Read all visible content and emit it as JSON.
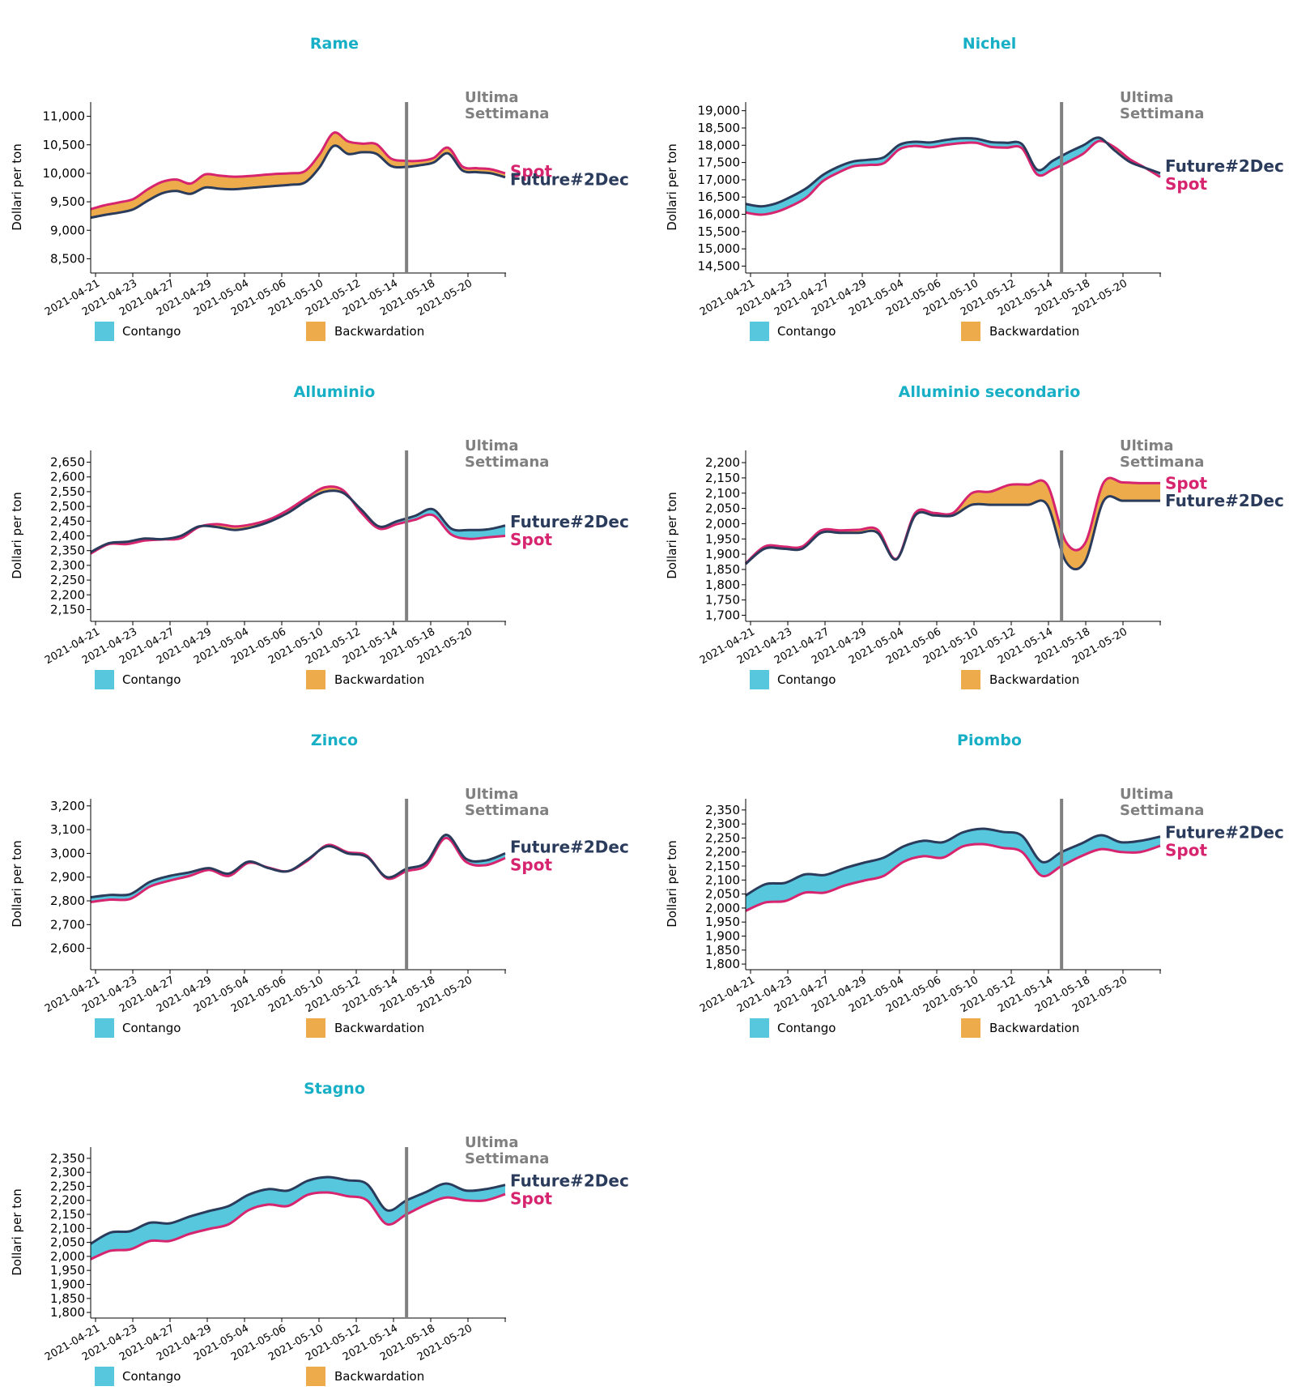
{
  "chart_data": [
    {
      "type": "area",
      "title": "Rame",
      "ylabel": "Dollari per ton",
      "ylim": [
        8250,
        11250
      ],
      "yticks": [
        8500,
        9000,
        9500,
        10000,
        10500,
        11000
      ],
      "ytick_labels": [
        "8,500",
        "9,000",
        "9,500",
        "10,000",
        "10,500",
        "11,000"
      ],
      "marker_label_1": "Ultima",
      "marker_label_2": "Settimana",
      "legend": [
        "Contango",
        "Backwardation"
      ],
      "series": [
        {
          "name": "Spot",
          "values": [
            9370,
            9440,
            9490,
            9550,
            9720,
            9850,
            9890,
            9820,
            9980,
            9960,
            9940,
            9950,
            9970,
            9990,
            10000,
            10040,
            10330,
            10710,
            10560,
            10520,
            10510,
            10260,
            10220,
            10220,
            10270,
            10450,
            10120,
            10090,
            10070,
            10000
          ]
        },
        {
          "name": "Future#2Dec",
          "values": [
            9220,
            9270,
            9310,
            9370,
            9520,
            9650,
            9690,
            9640,
            9750,
            9730,
            9720,
            9740,
            9760,
            9780,
            9800,
            9840,
            10100,
            10480,
            10340,
            10370,
            10340,
            10130,
            10110,
            10140,
            10190,
            10350,
            10050,
            10020,
            10000,
            9930
          ]
        }
      ],
      "end_label_order": [
        "Spot",
        "Future#2Dec"
      ]
    },
    {
      "type": "area",
      "title": "Nichel",
      "ylabel": "Dollari per ton",
      "ylim": [
        14300,
        19250
      ],
      "yticks": [
        14500,
        15000,
        15500,
        16000,
        16500,
        17000,
        17500,
        18000,
        18500,
        19000
      ],
      "ytick_labels": [
        "14,500",
        "15,000",
        "15,500",
        "16,000",
        "16,500",
        "17,000",
        "17,500",
        "18,000",
        "18,500",
        "19,000"
      ],
      "marker_label_1": "Ultima",
      "marker_label_2": "Settimana",
      "legend": [
        "Contango",
        "Backwardation"
      ],
      "series": [
        {
          "name": "Spot",
          "values": [
            16050,
            15990,
            16070,
            16250,
            16500,
            16950,
            17200,
            17390,
            17430,
            17480,
            17880,
            17980,
            17940,
            18010,
            18060,
            18070,
            17950,
            17930,
            17910,
            17150,
            17300,
            17520,
            17760,
            18120,
            17950,
            17600,
            17350,
            17080
          ]
        },
        {
          "name": "Future#2Dec",
          "values": [
            16300,
            16230,
            16320,
            16520,
            16770,
            17130,
            17370,
            17530,
            17580,
            17650,
            18010,
            18100,
            18080,
            18150,
            18200,
            18190,
            18090,
            18070,
            18030,
            17290,
            17550,
            17790,
            18000,
            18220,
            17860,
            17520,
            17350,
            17190
          ]
        }
      ],
      "end_label_order": [
        "Future#2Dec",
        "Spot"
      ]
    },
    {
      "type": "area",
      "title": "Alluminio",
      "ylabel": "Dollari per ton",
      "ylim": [
        2110,
        2690
      ],
      "yticks": [
        2150,
        2200,
        2250,
        2300,
        2350,
        2400,
        2450,
        2500,
        2550,
        2600,
        2650
      ],
      "ytick_labels": [
        "2,150",
        "2,200",
        "2,250",
        "2,300",
        "2,350",
        "2,400",
        "2,450",
        "2,500",
        "2,550",
        "2,600",
        "2,650"
      ],
      "marker_label_1": "Ultima",
      "marker_label_2": "Settimana",
      "legend": [
        "Contango",
        "Backwardation"
      ],
      "series": [
        {
          "name": "Spot",
          "values": [
            2340,
            2372,
            2372,
            2384,
            2388,
            2392,
            2430,
            2440,
            2432,
            2440,
            2458,
            2490,
            2530,
            2565,
            2555,
            2480,
            2425,
            2440,
            2455,
            2470,
            2405,
            2390,
            2395,
            2400
          ]
        },
        {
          "name": "Future#2Dec",
          "values": [
            2345,
            2375,
            2380,
            2391,
            2389,
            2400,
            2432,
            2430,
            2420,
            2430,
            2450,
            2480,
            2520,
            2550,
            2546,
            2490,
            2432,
            2450,
            2468,
            2490,
            2425,
            2420,
            2422,
            2435
          ]
        }
      ],
      "end_label_order": [
        "Future#2Dec",
        "Spot"
      ]
    },
    {
      "type": "area",
      "title": "Alluminio secondario",
      "ylabel": "Dollari per ton",
      "ylim": [
        1680,
        2240
      ],
      "yticks": [
        1700,
        1750,
        1800,
        1850,
        1900,
        1950,
        2000,
        2050,
        2100,
        2150,
        2200
      ],
      "ytick_labels": [
        "1,700",
        "1,750",
        "1,800",
        "1,850",
        "1,900",
        "1,950",
        "2,000",
        "2,050",
        "2,100",
        "2,150",
        "2,200"
      ],
      "marker_label_1": "Ultima",
      "marker_label_2": "Settimana",
      "legend": [
        "Contango",
        "Backwardation"
      ],
      "series": [
        {
          "name": "Spot",
          "values": [
            1870,
            1925,
            1925,
            1925,
            1978,
            1978,
            1980,
            1980,
            1885,
            2035,
            2035,
            2035,
            2100,
            2105,
            2127,
            2128,
            2128,
            1940,
            1935,
            2135,
            2135,
            2133,
            2133
          ]
        },
        {
          "name": "Future#2Dec",
          "values": [
            1868,
            1918,
            1918,
            1918,
            1970,
            1970,
            1970,
            1970,
            1883,
            2027,
            2027,
            2027,
            2062,
            2062,
            2062,
            2062,
            2062,
            1875,
            1875,
            2075,
            2075,
            2075,
            2075
          ]
        }
      ],
      "end_label_order": [
        "Spot",
        "Future#2Dec"
      ]
    },
    {
      "type": "area",
      "title": "Zinco",
      "ylabel": "Dollari per ton",
      "ylim": [
        2510,
        3230
      ],
      "yticks": [
        2600,
        2700,
        2800,
        2900,
        3000,
        3100,
        3200
      ],
      "ytick_labels": [
        "2,600",
        "2,700",
        "2,800",
        "2,900",
        "3,000",
        "3,100",
        "3,200"
      ],
      "marker_label_1": "Ultima",
      "marker_label_2": "Settimana",
      "legend": [
        "Contango",
        "Backwardation"
      ],
      "series": [
        {
          "name": "Spot",
          "values": [
            2795,
            2805,
            2808,
            2860,
            2885,
            2905,
            2930,
            2905,
            2960,
            2940,
            2925,
            2970,
            3035,
            3005,
            2990,
            2895,
            2925,
            2950,
            3065,
            2965,
            2950,
            2980
          ]
        },
        {
          "name": "Future#2Dec",
          "values": [
            2815,
            2825,
            2828,
            2880,
            2905,
            2920,
            2938,
            2915,
            2965,
            2938,
            2925,
            2975,
            3030,
            3000,
            2985,
            2900,
            2935,
            2962,
            3078,
            2978,
            2970,
            3000
          ]
        }
      ],
      "end_label_order": [
        "Future#2Dec",
        "Spot"
      ]
    },
    {
      "type": "area",
      "title": "Piombo",
      "ylabel": "Dollari per ton",
      "ylim": [
        1780,
        2390
      ],
      "yticks": [
        1800,
        1850,
        1900,
        1950,
        2000,
        2050,
        2100,
        2150,
        2200,
        2250,
        2300,
        2350
      ],
      "ytick_labels": [
        "1,800",
        "1,850",
        "1,900",
        "1,950",
        "2,000",
        "2,050",
        "2,100",
        "2,150",
        "2,200",
        "2,250",
        "2,300",
        "2,350"
      ],
      "marker_label_1": "Ultima",
      "marker_label_2": "Settimana",
      "legend": [
        "Contango",
        "Backwardation"
      ],
      "series": [
        {
          "name": "Spot",
          "values": [
            1990,
            2020,
            2025,
            2055,
            2055,
            2080,
            2098,
            2115,
            2165,
            2185,
            2180,
            2220,
            2228,
            2215,
            2200,
            2115,
            2150,
            2185,
            2210,
            2200,
            2200,
            2222
          ]
        },
        {
          "name": "Future#2Dec",
          "values": [
            2045,
            2085,
            2090,
            2120,
            2118,
            2142,
            2162,
            2180,
            2220,
            2240,
            2235,
            2270,
            2283,
            2272,
            2258,
            2165,
            2200,
            2230,
            2260,
            2235,
            2240,
            2255
          ]
        }
      ],
      "end_label_order": [
        "Future#2Dec",
        "Spot"
      ]
    },
    {
      "type": "area",
      "title": "Stagno",
      "ylabel": "Dollari per ton",
      "ylim": [
        1780,
        2390
      ],
      "yticks": [
        1800,
        1850,
        1900,
        1950,
        2000,
        2050,
        2100,
        2150,
        2200,
        2250,
        2300,
        2350
      ],
      "ytick_labels": [
        "1,800",
        "1,850",
        "1,900",
        "1,950",
        "2,000",
        "2,050",
        "2,100",
        "2,150",
        "2,200",
        "2,250",
        "2,300",
        "2,350"
      ],
      "marker_label_1": "Ultima",
      "marker_label_2": "Settimana",
      "legend": [
        "Contango",
        "Backwardation"
      ],
      "series": [
        {
          "name": "Spot",
          "values": [
            1990,
            2020,
            2025,
            2055,
            2055,
            2080,
            2098,
            2115,
            2165,
            2185,
            2180,
            2220,
            2228,
            2215,
            2200,
            2115,
            2150,
            2185,
            2210,
            2200,
            2200,
            2222
          ]
        },
        {
          "name": "Future#2Dec",
          "values": [
            2045,
            2085,
            2090,
            2120,
            2118,
            2142,
            2162,
            2180,
            2220,
            2240,
            2235,
            2270,
            2283,
            2272,
            2258,
            2165,
            2200,
            2230,
            2260,
            2235,
            2240,
            2255
          ]
        }
      ],
      "end_label_order": [
        "Future#2Dec",
        "Spot"
      ]
    }
  ],
  "x_tick_labels": [
    "2021-04-21",
    "2021-04-23",
    "2021-04-27",
    "2021-04-29",
    "2021-05-04",
    "2021-05-06",
    "2021-05-10",
    "2021-05-12",
    "2021-05-14",
    "2021-05-18",
    "2021-05-20"
  ],
  "marker_fraction": 0.762,
  "colors": {
    "title": "#17afc6",
    "spot": "#d6246f",
    "future": "#2a3b5c",
    "contango": "#56c7dc",
    "backwardation": "#edab4b",
    "marker": "#808080"
  }
}
